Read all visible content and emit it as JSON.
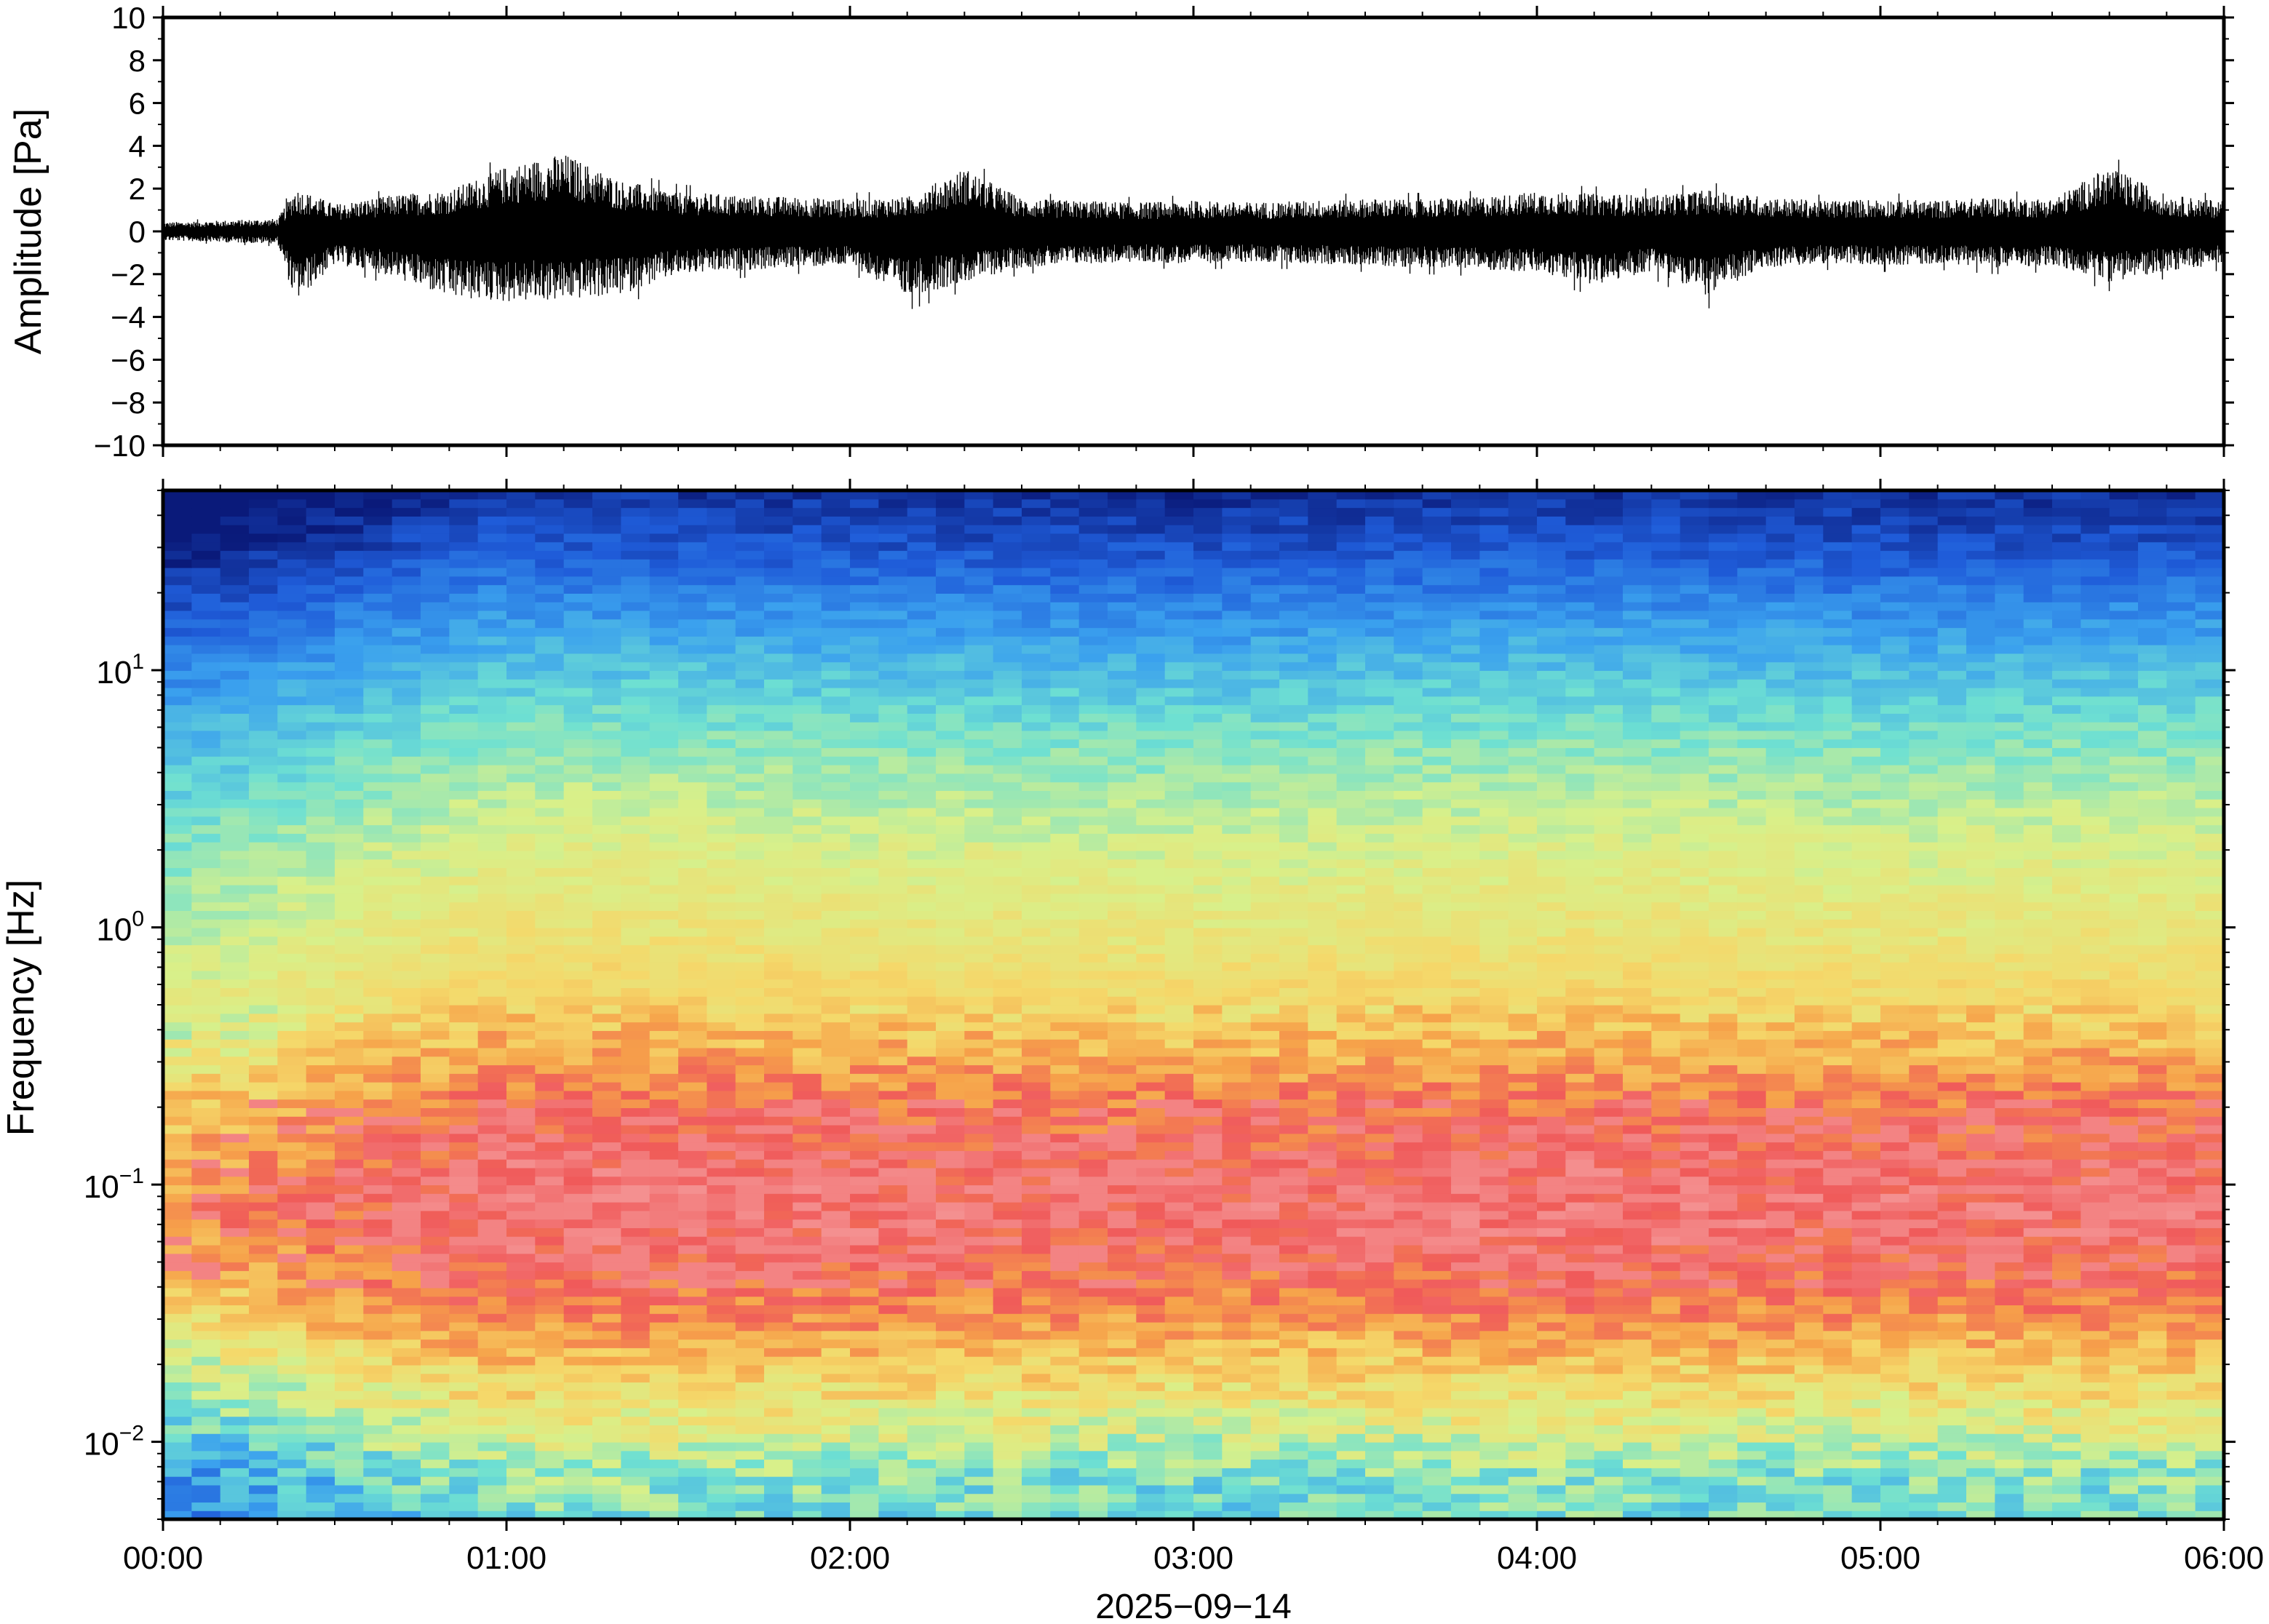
{
  "chart_data": [
    {
      "type": "line",
      "title": "",
      "xlabel": "",
      "ylabel": "Amplitude [Pa]",
      "ylim": [
        -10,
        10
      ],
      "y_ticks": [
        -10,
        -8,
        -6,
        -4,
        -2,
        0,
        2,
        4,
        6,
        8,
        10
      ],
      "y_tick_labels": [
        "−10",
        "−8",
        "−6",
        "−4",
        "−2",
        "0",
        "2",
        "4",
        "6",
        "8",
        "10"
      ],
      "x_range": [
        "00:00",
        "06:00"
      ],
      "trace_color": "#000000",
      "series": [
        {
          "x": [
            "00:00",
            "00:10",
            "00:20",
            "00:23",
            "00:30",
            "00:40",
            "00:50",
            "01:00",
            "01:10",
            "01:20",
            "01:30",
            "01:40",
            "01:50",
            "02:00",
            "02:10",
            "02:20",
            "02:30",
            "02:40",
            "02:50",
            "03:00",
            "03:10",
            "03:20",
            "03:30",
            "03:40",
            "03:50",
            "04:00",
            "04:10",
            "04:20",
            "04:30",
            "04:40",
            "04:50",
            "05:00",
            "05:10",
            "05:20",
            "05:30",
            "05:40",
            "05:50",
            "06:00"
          ],
          "envelope_max": [
            0.5,
            0.6,
            0.7,
            2.4,
            1.5,
            2.0,
            2.3,
            3.6,
            4.3,
            2.8,
            2.2,
            2.0,
            1.9,
            1.8,
            1.9,
            3.5,
            1.8,
            1.7,
            1.6,
            1.7,
            1.6,
            1.7,
            1.8,
            1.8,
            1.9,
            2.2,
            2.1,
            2.0,
            2.3,
            1.9,
            1.7,
            1.8,
            1.7,
            1.9,
            1.8,
            3.6,
            2.0,
            1.7
          ],
          "envelope_min": [
            -0.5,
            -0.6,
            -0.7,
            -3.9,
            -1.8,
            -2.5,
            -3.7,
            -3.9,
            -3.8,
            -3.5,
            -2.4,
            -2.2,
            -2.0,
            -1.9,
            -3.7,
            -2.8,
            -2.0,
            -1.8,
            -1.7,
            -1.8,
            -1.7,
            -1.8,
            -1.9,
            -2.0,
            -2.1,
            -2.3,
            -3.0,
            -2.2,
            -3.6,
            -2.0,
            -1.8,
            -1.9,
            -1.8,
            -2.0,
            -1.9,
            -2.8,
            -2.2,
            -1.8
          ]
        }
      ]
    },
    {
      "type": "heatmap",
      "title": "",
      "xlabel": "2025−09−14",
      "ylabel": "Frequency [Hz]",
      "y_scale": "log",
      "ylim": [
        0.005,
        50
      ],
      "y_ticks": [
        0.01,
        0.1,
        1,
        10
      ],
      "y_tick_labels": [
        {
          "base": "10",
          "exp": "−2"
        },
        {
          "base": "10",
          "exp": "−1"
        },
        {
          "base": "10",
          "exp": "0"
        },
        {
          "base": "10",
          "exp": "1"
        }
      ],
      "x_ticks": [
        "00:00",
        "01:00",
        "02:00",
        "03:00",
        "04:00",
        "05:00",
        "06:00"
      ],
      "colormap": "rainbow",
      "colormap_stops": [
        "#0a1a7a",
        "#1f5cd9",
        "#3aa0ee",
        "#6ee0d2",
        "#d8f08a",
        "#f5d86a",
        "#f6a24a",
        "#f05a5a",
        "#f49090"
      ],
      "profile_frequencies_hz": [
        50,
        30,
        20,
        10,
        5,
        2,
        1,
        0.5,
        0.3,
        0.2,
        0.12,
        0.08,
        0.05,
        0.03,
        0.02,
        0.012,
        0.008,
        0.005
      ],
      "profile_levels": [
        0.03,
        0.1,
        0.18,
        0.3,
        0.4,
        0.5,
        0.55,
        0.62,
        0.72,
        0.82,
        0.88,
        0.92,
        0.86,
        0.76,
        0.64,
        0.52,
        0.4,
        0.35
      ],
      "time_offsets_by_hour": [
        {
          "t": "00:00",
          "offset": -0.16
        },
        {
          "t": "00:20",
          "offset": -0.1
        },
        {
          "t": "00:40",
          "offset": -0.02
        },
        {
          "t": "01:00",
          "offset": 0.04
        },
        {
          "t": "02:00",
          "offset": 0.02
        },
        {
          "t": "03:00",
          "offset": 0.0
        },
        {
          "t": "04:00",
          "offset": 0.03
        },
        {
          "t": "05:00",
          "offset": 0.01
        },
        {
          "t": "06:00",
          "offset": 0.02
        }
      ]
    }
  ]
}
